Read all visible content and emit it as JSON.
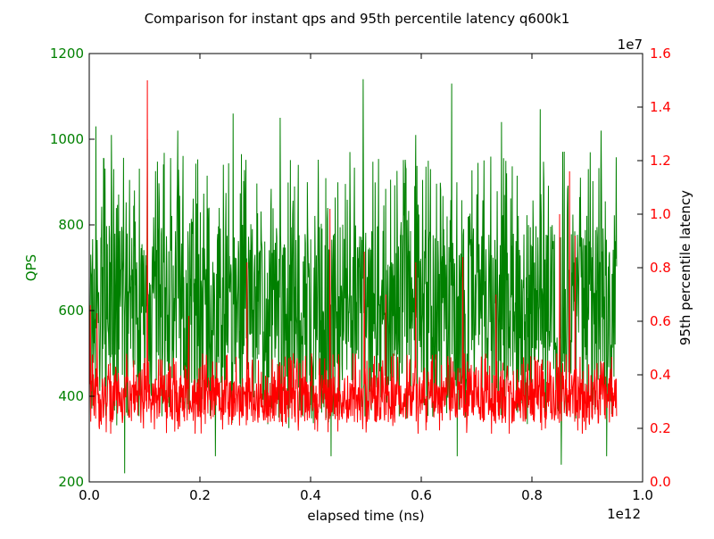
{
  "chart_data": {
    "type": "line",
    "title": "Comparison for instant qps and 95th percentile latency q600k1",
    "xlabel": "elapsed time (ns)",
    "x_offset_label": "1e12",
    "xlim": [
      0.0,
      1.0
    ],
    "x_ticks": [
      "0.0",
      "0.2",
      "0.4",
      "0.6",
      "0.8",
      "1.0"
    ],
    "x_data_end": 0.953,
    "grid": false,
    "legend": "none",
    "left_axis": {
      "label": "QPS",
      "color": "#008000",
      "ylim": [
        200,
        1200
      ],
      "ticks": [
        "200",
        "400",
        "600",
        "800",
        "1000",
        "1200"
      ]
    },
    "right_axis": {
      "label": "95th percentile latency",
      "color": "#ff0000",
      "offset_label": "1e7",
      "ylim": [
        0.0,
        1.6
      ],
      "ticks": [
        "0.0",
        "0.2",
        "0.4",
        "0.6",
        "0.8",
        "1.0",
        "1.2",
        "1.4",
        "1.6"
      ]
    },
    "series": [
      {
        "axis": "left",
        "color": "#008000",
        "approx_band": [
          420,
          800
        ],
        "range": [
          220,
          1140
        ],
        "spikes": [
          {
            "x": 0.012,
            "y": 1030
          },
          {
            "x": 0.04,
            "y": 1010
          },
          {
            "x": 0.064,
            "y": 220
          },
          {
            "x": 0.105,
            "y": 1000
          },
          {
            "x": 0.16,
            "y": 1020
          },
          {
            "x": 0.228,
            "y": 260
          },
          {
            "x": 0.26,
            "y": 1060
          },
          {
            "x": 0.345,
            "y": 1050
          },
          {
            "x": 0.437,
            "y": 260
          },
          {
            "x": 0.495,
            "y": 1140
          },
          {
            "x": 0.59,
            "y": 1010
          },
          {
            "x": 0.655,
            "y": 1130
          },
          {
            "x": 0.665,
            "y": 260
          },
          {
            "x": 0.745,
            "y": 1040
          },
          {
            "x": 0.815,
            "y": 1070
          },
          {
            "x": 0.853,
            "y": 240
          },
          {
            "x": 0.925,
            "y": 1020
          },
          {
            "x": 0.935,
            "y": 260
          }
        ]
      },
      {
        "axis": "right",
        "color": "#ff0000",
        "approx_band": [
          0.22,
          0.4
        ],
        "range": [
          0.18,
          1.5
        ],
        "spikes": [
          {
            "x": 0.002,
            "y": 0.66
          },
          {
            "x": 0.014,
            "y": 0.63
          },
          {
            "x": 0.105,
            "y": 1.5
          },
          {
            "x": 0.18,
            "y": 0.62
          },
          {
            "x": 0.285,
            "y": 0.82
          },
          {
            "x": 0.435,
            "y": 1.02
          },
          {
            "x": 0.497,
            "y": 0.86
          },
          {
            "x": 0.536,
            "y": 0.7
          },
          {
            "x": 0.59,
            "y": 0.82
          },
          {
            "x": 0.675,
            "y": 0.84
          },
          {
            "x": 0.735,
            "y": 0.7
          },
          {
            "x": 0.85,
            "y": 1.0
          },
          {
            "x": 0.868,
            "y": 1.16
          },
          {
            "x": 0.878,
            "y": 0.92
          }
        ]
      }
    ]
  }
}
